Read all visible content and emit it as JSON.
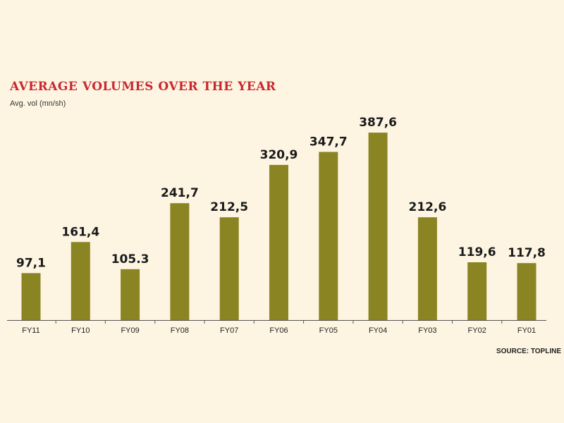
{
  "chart_data": {
    "type": "bar",
    "title": "AVERAGE VOLUMES OVER THE YEAR",
    "subtitle": "Avg. vol (mn/sh)",
    "source": "SOURCE: TOPLINE",
    "categories": [
      "FY11",
      "FY10",
      "FY09",
      "FY08",
      "FY07",
      "FY06",
      "FY05",
      "FY04",
      "FY03",
      "FY02",
      "FY01"
    ],
    "values": [
      97.1,
      161.4,
      105.3,
      241.7,
      212.5,
      320.9,
      347.7,
      387.6,
      212.6,
      119.6,
      117.8
    ],
    "value_labels": [
      "97,1",
      "161,4",
      "105.3",
      "241,7",
      "212,5",
      "320,9",
      "347,7",
      "387,6",
      "212,6",
      "119,6",
      "117,8"
    ],
    "ylim": [
      0,
      400
    ],
    "grid": false,
    "legend": "none",
    "bar_color": "#8a8423",
    "axis_color": "#555555"
  }
}
